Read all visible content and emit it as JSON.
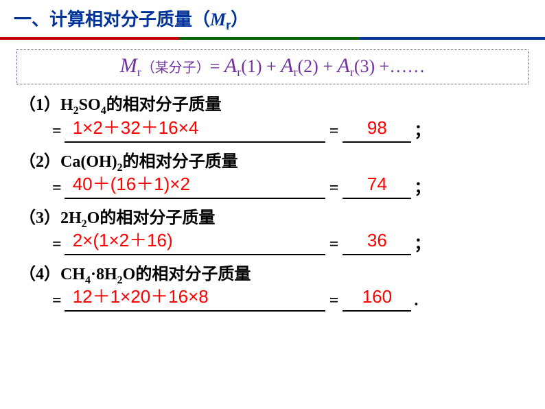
{
  "title": {
    "prefix": "一、计算相对分子质量（",
    "mr": "M",
    "mr_sub": "r",
    "suffix": "）"
  },
  "colors": {
    "title": "#003399",
    "formula": "#7030a0",
    "answer": "#ff0000",
    "underline": "#000000",
    "divider_left": "#c00000",
    "divider_mid": "#006600",
    "divider_right": "#003399"
  },
  "formula": {
    "M": "M",
    "r": "r",
    "open": "（",
    "subject": "某分子",
    "close": "）",
    "eq": "= ",
    "A": "A",
    "term1": "(1) + ",
    "term2": "(2) + ",
    "term3": "(3) +……"
  },
  "problems": [
    {
      "num": "（1）",
      "compound_html": "H<sub class='sub'>2</sub>SO<sub class='sub'>4</sub>",
      "label": "的相对分子质量",
      "expr": "1×2＋32＋16×4",
      "result": "98",
      "tail": "；"
    },
    {
      "num": "（2）",
      "compound_html": "Ca(OH)<sub class='sub'>2</sub>",
      "label": "的相对分子质量",
      "expr": "40＋(16＋1)×2",
      "result": "74",
      "tail": "；"
    },
    {
      "num": "（3）",
      "compound_html": "2H<sub class='sub'>2</sub>O",
      "label": "的相对分子质量",
      "expr": "2×(1×2＋16)",
      "result": "36",
      "tail": "；"
    },
    {
      "num": "（4）",
      "compound_html": "CH<sub class='sub'>4</sub>·8H<sub class='sub'>2</sub>O",
      "label": "的相对分子质量",
      "expr": "12＋1×20＋16×8",
      "result": "160",
      "tail": "."
    }
  ]
}
